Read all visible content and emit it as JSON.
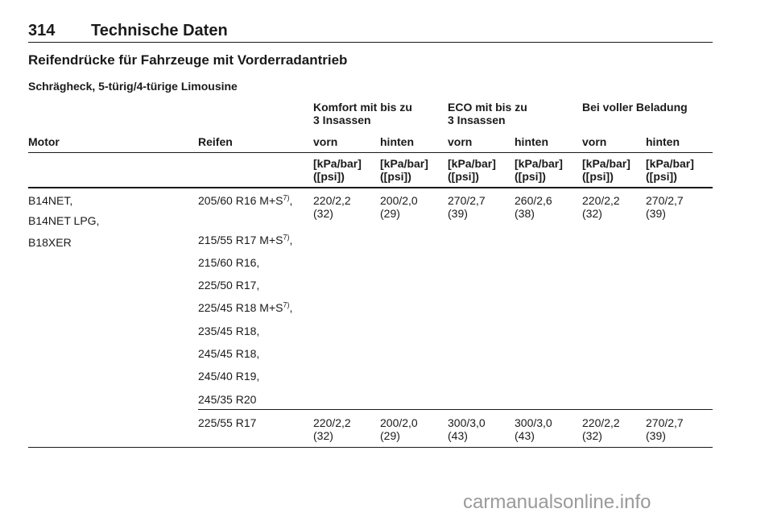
{
  "header": {
    "page_number": "314",
    "title": "Technische Daten"
  },
  "section_title": "Reifendrücke für Fahrzeuge mit Vorderradantrieb",
  "subsection_title": "Schrägheck, 5-türig/4-türige Limousine",
  "table": {
    "group_headers": [
      "Komfort mit bis zu",
      "3 Insassen",
      "ECO mit bis zu",
      "3 Insassen",
      "Bei voller Beladung"
    ],
    "column_headers": [
      "Motor",
      "Reifen",
      "vorn",
      "hinten",
      "vorn",
      "hinten",
      "vorn",
      "hinten"
    ],
    "unit_line1": "[kPa/bar]",
    "unit_line2": "([psi])",
    "row1": {
      "motors": [
        "B14NET,",
        "B14NET LPG,",
        "B18XER"
      ],
      "tyres": [
        {
          "text": "205/60 R16 M+S",
          "sup": "7)",
          "tail": ","
        },
        {
          "text": "215/55 R17 M+S",
          "sup": "7)",
          "tail": ","
        },
        {
          "text": "215/60 R16,",
          "sup": "",
          "tail": ""
        },
        {
          "text": "225/50 R17,",
          "sup": "",
          "tail": ""
        },
        {
          "text": "225/45 R18 M+S",
          "sup": "7)",
          "tail": ","
        },
        {
          "text": "235/45 R18,",
          "sup": "",
          "tail": ""
        },
        {
          "text": "245/45 R18,",
          "sup": "",
          "tail": ""
        },
        {
          "text": "245/40 R19,",
          "sup": "",
          "tail": ""
        },
        {
          "text": "245/35 R20",
          "sup": "",
          "tail": ""
        }
      ],
      "values": [
        {
          "kpa": "220/2,2",
          "psi": "(32)"
        },
        {
          "kpa": "200/2,0",
          "psi": "(29)"
        },
        {
          "kpa": "270/2,7",
          "psi": "(39)"
        },
        {
          "kpa": "260/2,6",
          "psi": "(38)"
        },
        {
          "kpa": "220/2,2",
          "psi": "(32)"
        },
        {
          "kpa": "270/2,7",
          "psi": "(39)"
        }
      ]
    },
    "row2": {
      "tyre": "225/55 R17",
      "values": [
        {
          "kpa": "220/2,2",
          "psi": "(32)"
        },
        {
          "kpa": "200/2,0",
          "psi": "(29)"
        },
        {
          "kpa": "300/3,0",
          "psi": "(43)"
        },
        {
          "kpa": "300/3,0",
          "psi": "(43)"
        },
        {
          "kpa": "220/2,2",
          "psi": "(32)"
        },
        {
          "kpa": "270/2,7",
          "psi": "(39)"
        }
      ]
    }
  },
  "watermark": "carmanualsonline.info"
}
